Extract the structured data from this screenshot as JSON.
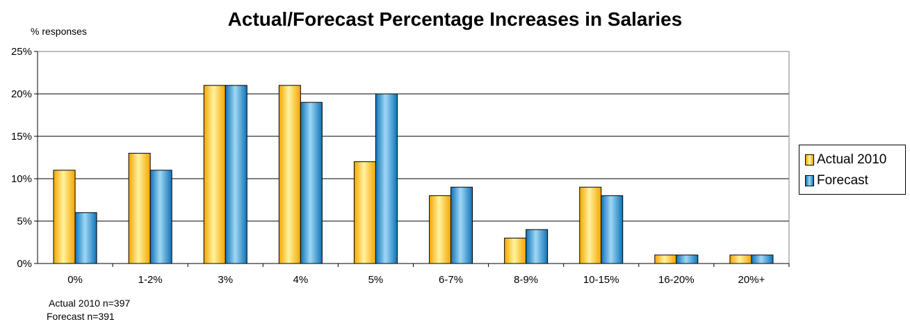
{
  "chart_data": {
    "type": "bar",
    "title": "Actual/Forecast Percentage Increases in Salaries",
    "ylabel": "% responses",
    "xlabel": "",
    "categories": [
      "0%",
      "1-2%",
      "3%",
      "4%",
      "5%",
      "6-7%",
      "8-9%",
      "10-15%",
      "16-20%",
      "20%+"
    ],
    "series": [
      {
        "name": "Actual 2010",
        "values": [
          11,
          13,
          21,
          21,
          12,
          8,
          3,
          9,
          1,
          1
        ],
        "color_top": "#fff3a0",
        "color_bottom": "#f5a400"
      },
      {
        "name": "Forecast",
        "values": [
          6,
          11,
          21,
          19,
          20,
          9,
          4,
          8,
          1,
          1
        ],
        "color_top": "#9fd8f5",
        "color_bottom": "#0f73b8"
      }
    ],
    "ylim": [
      0,
      25
    ],
    "yticks": [
      0,
      5,
      10,
      15,
      20,
      25
    ],
    "ytick_labels": [
      "0%",
      "5%",
      "10%",
      "15%",
      "20%",
      "25%"
    ],
    "grid": true,
    "legend_position": "right"
  },
  "notes": [
    "Actual 2010 n=397",
    "Forecast n=391"
  ]
}
